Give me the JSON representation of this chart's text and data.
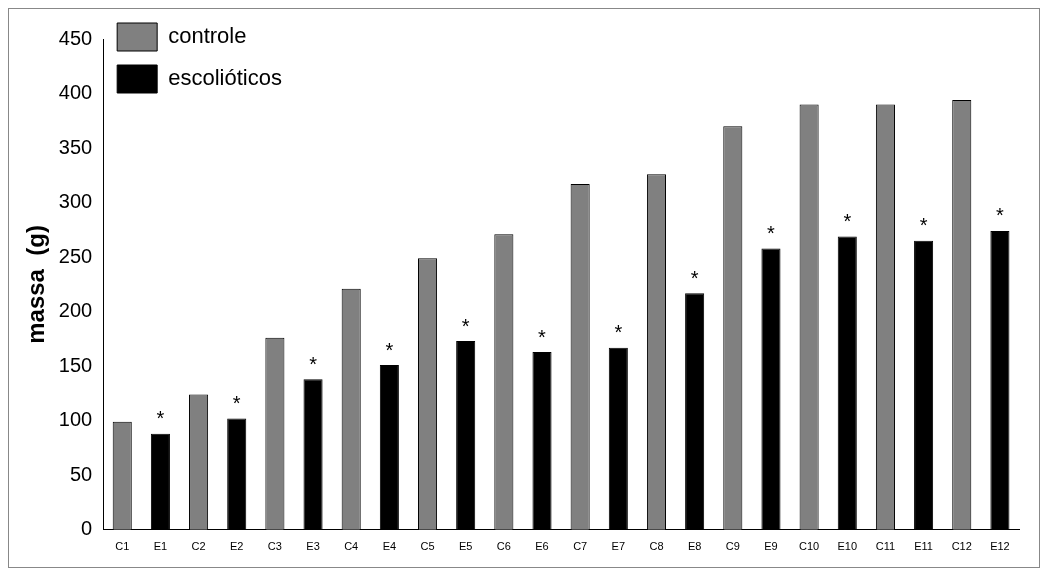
{
  "chart_data": {
    "type": "bar",
    "ylabel": "massa  (g)",
    "categories": [
      "C1",
      "E1",
      "C2",
      "E2",
      "C3",
      "E3",
      "C4",
      "E4",
      "C5",
      "E5",
      "C6",
      "E6",
      "C7",
      "E7",
      "C8",
      "E8",
      "C9",
      "E9",
      "C10",
      "E10",
      "C11",
      "E11",
      "C12",
      "E12"
    ],
    "series": [
      {
        "name": "controle",
        "color": "#808080",
        "values": [
          99,
          null,
          124,
          null,
          176,
          null,
          221,
          null,
          249,
          null,
          271,
          null,
          317,
          null,
          326,
          null,
          370,
          null,
          390,
          null,
          390,
          null,
          394,
          null
        ]
      },
      {
        "name": "escolióticos",
        "color": "#000000",
        "values": [
          null,
          88,
          null,
          102,
          null,
          138,
          null,
          151,
          null,
          173,
          null,
          163,
          null,
          167,
          null,
          217,
          null,
          258,
          null,
          269,
          null,
          265,
          null,
          274
        ]
      }
    ],
    "ylim": [
      0,
      450
    ],
    "yticks": [
      0,
      50,
      100,
      150,
      200,
      250,
      300,
      350,
      400,
      450
    ],
    "grid": false,
    "legend": "top left",
    "annotations": [
      {
        "text": "*",
        "x": "E1",
        "y": 88
      },
      {
        "text": "*",
        "x": "E2",
        "y": 102
      },
      {
        "text": "*",
        "x": "E3",
        "y": 138
      },
      {
        "text": "*",
        "x": "E4",
        "y": 151
      },
      {
        "text": "*",
        "x": "E5",
        "y": 173
      },
      {
        "text": "*",
        "x": "E6",
        "y": 163
      },
      {
        "text": "*",
        "x": "E7",
        "y": 167
      },
      {
        "text": "*",
        "x": "E8",
        "y": 217
      },
      {
        "text": "*",
        "x": "E9",
        "y": 258
      },
      {
        "text": "*",
        "x": "E10",
        "y": 269
      },
      {
        "text": "*",
        "x": "E11",
        "y": 265
      },
      {
        "text": "*",
        "x": "E12",
        "y": 274
      }
    ]
  }
}
